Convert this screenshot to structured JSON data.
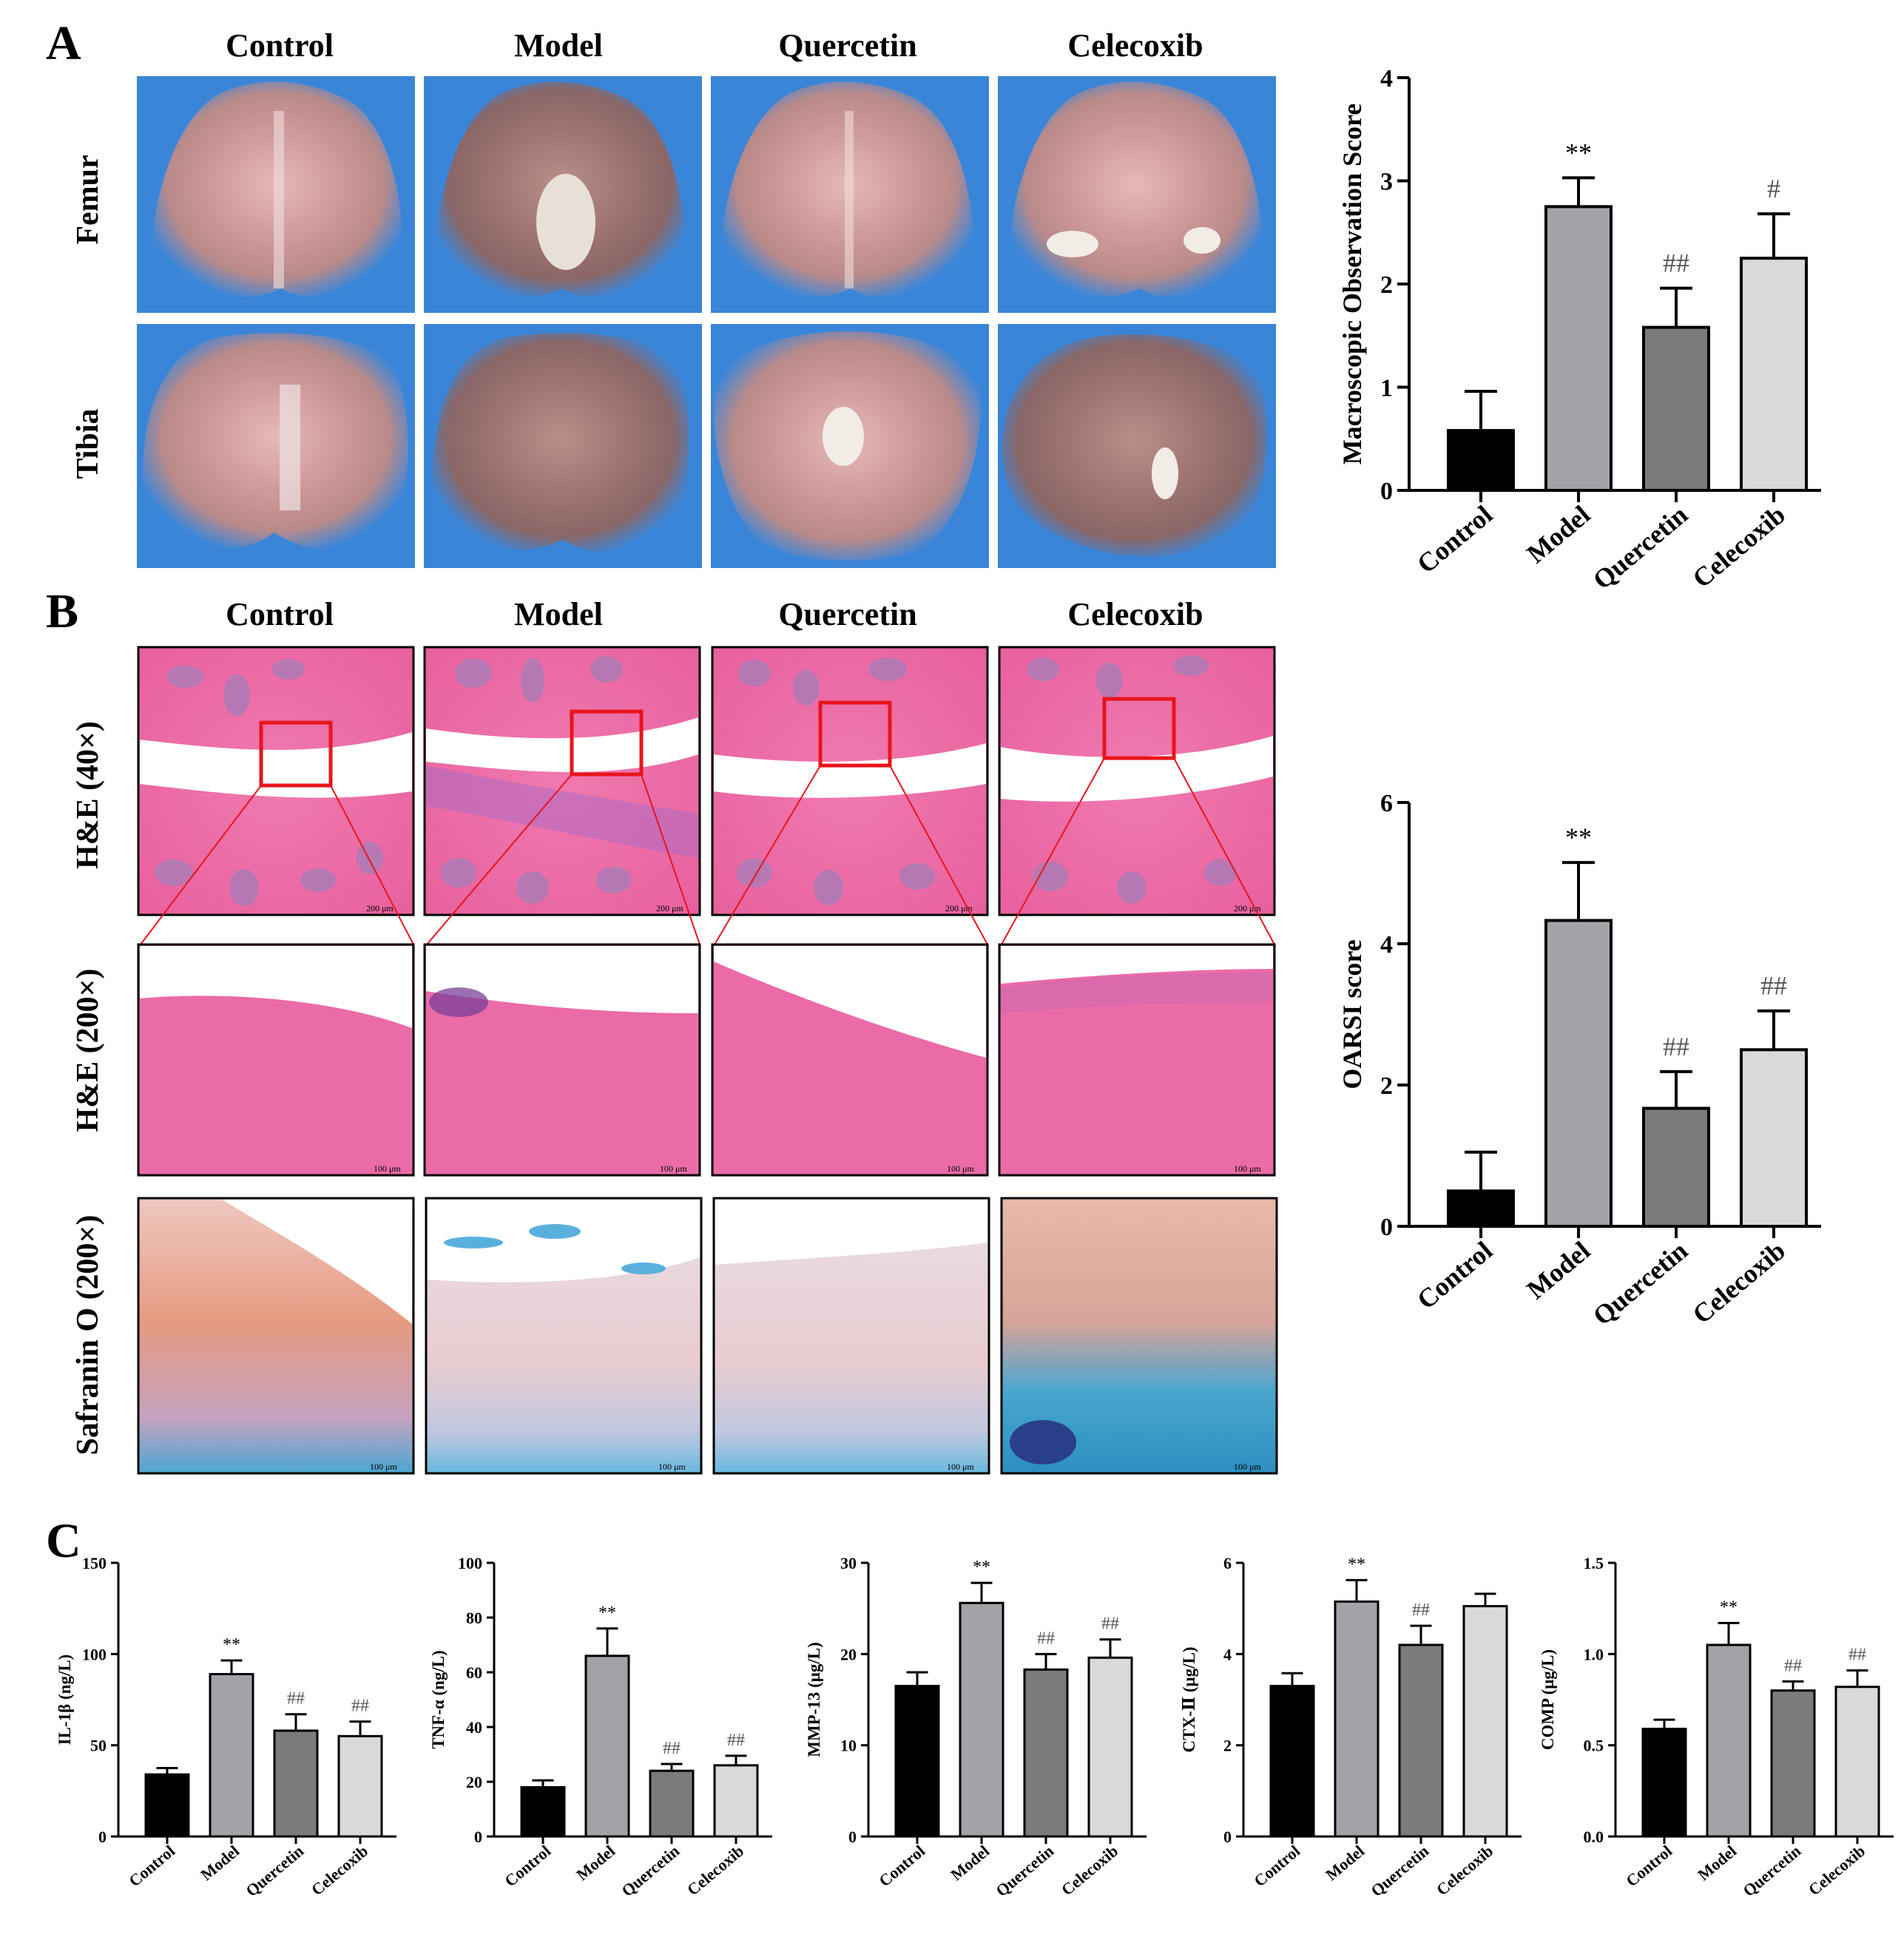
{
  "panels": {
    "A": {
      "letter": "A"
    },
    "B": {
      "letter": "B"
    },
    "C": {
      "letter": "C"
    }
  },
  "groups": [
    "Control",
    "Model",
    "Quercetin",
    "Celecoxib"
  ],
  "rows_A": [
    "Femur",
    "Tibia"
  ],
  "rows_B": [
    "H&E (40×)",
    "H&E (200×)",
    "Safranin O (200×)"
  ],
  "scale_bars": {
    "lowmag": "200 μm",
    "highmag": "100 μm"
  },
  "colors": {
    "control": "#000000",
    "model": "#a2a2a8",
    "quercetin": "#7b7b7b",
    "celecoxib": "#d9d9d9"
  },
  "chart_data": [
    {
      "id": "A_macroscopic",
      "type": "bar",
      "categories": [
        "Control",
        "Model",
        "Quercetin",
        "Celecoxib"
      ],
      "values": [
        0.58,
        2.75,
        1.58,
        2.25
      ],
      "errors": [
        0.38,
        0.28,
        0.38,
        0.43
      ],
      "significance": [
        "",
        "**",
        "##",
        "#"
      ],
      "ylabel": "Macroscopic Observation Score",
      "ylim": [
        0,
        4
      ],
      "yticks": [
        "0",
        "1",
        "2",
        "3",
        "4"
      ]
    },
    {
      "id": "B_oarsi",
      "type": "bar",
      "categories": [
        "Control",
        "Model",
        "Quercetin",
        "Celecoxib"
      ],
      "values": [
        0.5,
        4.33,
        1.67,
        2.5
      ],
      "errors": [
        0.55,
        0.82,
        0.52,
        0.55
      ],
      "significance": [
        "",
        "**",
        "##",
        "##"
      ],
      "ylabel": "OARSI score",
      "ylim": [
        0,
        6
      ],
      "yticks": [
        "0",
        "2",
        "4",
        "6"
      ]
    },
    {
      "id": "C_il1b",
      "type": "bar",
      "categories": [
        "Control",
        "Model",
        "Quercetin",
        "Celecoxib"
      ],
      "values": [
        34,
        89,
        58,
        55
      ],
      "errors": [
        3.5,
        7.5,
        9,
        8
      ],
      "significance": [
        "",
        "**",
        "##",
        "##"
      ],
      "ylabel": "IL-1β (ng/L)",
      "ylim": [
        0,
        150
      ],
      "yticks": [
        "0",
        "50",
        "100",
        "150"
      ]
    },
    {
      "id": "C_tnfa",
      "type": "bar",
      "categories": [
        "Control",
        "Model",
        "Quercetin",
        "Celecoxib"
      ],
      "values": [
        18,
        66,
        24,
        26
      ],
      "errors": [
        2.5,
        10,
        2.5,
        3.5
      ],
      "significance": [
        "",
        "**",
        "##",
        "##"
      ],
      "ylabel": "TNF-α (ng/L)",
      "ylim": [
        0,
        100
      ],
      "yticks": [
        "0",
        "20",
        "40",
        "60",
        "80",
        "100"
      ]
    },
    {
      "id": "C_mmp13",
      "type": "bar",
      "categories": [
        "Control",
        "Model",
        "Quercetin",
        "Celecoxib"
      ],
      "values": [
        16.5,
        25.6,
        18.3,
        19.6
      ],
      "errors": [
        1.5,
        2.2,
        1.7,
        2.0
      ],
      "significance": [
        "",
        "**",
        "##",
        "##"
      ],
      "ylabel": "MMP-13 (μg/L)",
      "ylim": [
        0,
        30
      ],
      "yticks": [
        "0",
        "10",
        "20",
        "30"
      ]
    },
    {
      "id": "C_ctx2",
      "type": "bar",
      "categories": [
        "Control",
        "Model",
        "Quercetin",
        "Celecoxib"
      ],
      "values": [
        3.3,
        5.15,
        4.2,
        5.05
      ],
      "errors": [
        0.28,
        0.47,
        0.42,
        0.27
      ],
      "significance": [
        "",
        "**",
        "##",
        ""
      ],
      "ylabel": "CTX-Ⅱ (μg/L)",
      "ylim": [
        0,
        6
      ],
      "yticks": [
        "0",
        "2",
        "4",
        "6"
      ]
    },
    {
      "id": "C_comp",
      "type": "bar",
      "categories": [
        "Control",
        "Model",
        "Quercetin",
        "Celecoxib"
      ],
      "values": [
        0.59,
        1.05,
        0.8,
        0.82
      ],
      "errors": [
        0.05,
        0.12,
        0.05,
        0.09
      ],
      "significance": [
        "",
        "**",
        "##",
        "##"
      ],
      "ylabel": "COMP (μg/L)",
      "ylim": [
        0,
        1.5
      ],
      "yticks": [
        "0.0",
        "0.5",
        "1.0",
        "1.5"
      ]
    }
  ]
}
